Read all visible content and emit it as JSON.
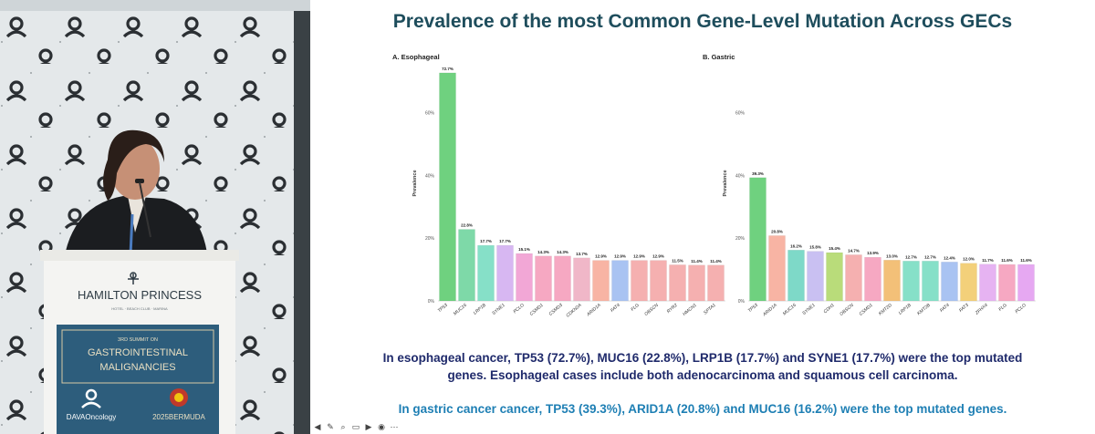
{
  "slide": {
    "title": "Prevalence of the most Common Gene-Level Mutation Across GECs",
    "finding_esophageal_line1": "In esophageal cancer, TP53 (72.7%), MUC16 (22.8%), LRP1B (17.7%) and SYNE1 (17.7%) were the top mutated",
    "finding_esophageal_line2": "genes. Esophageal cases include both adenocarcinoma and squamous cell carcinoma.",
    "finding_gastric": "In gastric cancer cancer, TP53 (39.3%), ARID1A (20.8%) and MUC16 (16.2%) were the top mutated genes."
  },
  "podium": {
    "brand_line1": "HAMILTON PRINCESS",
    "brand_line2": "HOTEL · BEACH CLUB · MARINA",
    "summit_line1": "3RD SUMMIT ON",
    "summit_line2": "GASTROINTESTINAL",
    "summit_line3": "MALIGNANCIES",
    "sponsor": "DAVAOncology",
    "event": "2025BERMUDA"
  },
  "colors": {
    "title": "#1e4d5c",
    "findings": "#1f2a6b",
    "gastric_text": "#1e7fb4"
  },
  "toolbar_icons": [
    "back-icon",
    "pen-icon",
    "zoom-icon",
    "captions-icon",
    "video-icon",
    "chat-icon",
    "more-icon"
  ],
  "chart_data": [
    {
      "type": "bar",
      "title": "A.  Esophageal",
      "ylabel": "Prevalence",
      "xlabel": "",
      "ylim": [
        0,
        75
      ],
      "yticks": [
        "0%",
        "20%",
        "40%",
        "60%"
      ],
      "categories": [
        "TP53",
        "MUC16",
        "LRP1B",
        "SYNE1",
        "PCLO",
        "CSMD1",
        "CSMD3",
        "CDKN2A",
        "ARID1A",
        "FAT4",
        "FLG",
        "OBSCN",
        "RYR2",
        "HMCN1",
        "SPTA1"
      ],
      "values": [
        72.7,
        22.8,
        17.7,
        17.7,
        15.1,
        14.3,
        14.3,
        13.7,
        12.9,
        12.9,
        12.9,
        12.9,
        11.5,
        11.4,
        11.4
      ],
      "labels": [
        "72.7%",
        "22.8%",
        "17.7%",
        "17.7%",
        "15.1%",
        "14.3%",
        "14.3%",
        "13.7%",
        "12.9%",
        "12.9%",
        "12.9%",
        "12.9%",
        "11.5%",
        "11.4%",
        "11.4%"
      ],
      "colors": [
        "#6fd17f",
        "#7ed9a8",
        "#86e0c8",
        "#d7b7f2",
        "#f2a7d6",
        "#f6a8c2",
        "#f6a8c2",
        "#f0b7c8",
        "#f8b4a4",
        "#a9c3f2",
        "#f5b0b0",
        "#f5b0b0",
        "#f5b0b0",
        "#f5b0b0",
        "#f5b0b0"
      ]
    },
    {
      "type": "bar",
      "title": "B.  Gastric",
      "ylabel": "Prevalence",
      "xlabel": "",
      "ylim": [
        0,
        75
      ],
      "yticks": [
        "0%",
        "20%",
        "40%",
        "60%"
      ],
      "categories": [
        "TP53",
        "ARID1A",
        "MUC16",
        "SYNE1",
        "CDH1",
        "OBSCN",
        "CSMD1",
        "KMT2D",
        "LRP1B",
        "KMT2B",
        "FAT4",
        "FAT3",
        "ZFHX4",
        "FLG",
        "PCLO"
      ],
      "values": [
        39.3,
        20.8,
        16.2,
        15.8,
        15.4,
        14.7,
        13.9,
        13.0,
        12.7,
        12.7,
        12.4,
        12.0,
        11.7,
        11.6,
        11.6
      ],
      "labels": [
        "39.3%",
        "20.8%",
        "16.2%",
        "15.8%",
        "15.4%",
        "14.7%",
        "13.9%",
        "13.0%",
        "12.7%",
        "12.7%",
        "12.4%",
        "12.0%",
        "11.7%",
        "11.6%",
        "11.6%"
      ],
      "colors": [
        "#6fd17f",
        "#f8b4a4",
        "#7ed9c8",
        "#c9c0f2",
        "#b9dc7a",
        "#f5b0b0",
        "#f6a8c2",
        "#f3c078",
        "#86e0c8",
        "#86e0c8",
        "#a9c3f2",
        "#f3d07a",
        "#e6b3f2",
        "#f6a8c2",
        "#e6a8f2"
      ]
    }
  ]
}
